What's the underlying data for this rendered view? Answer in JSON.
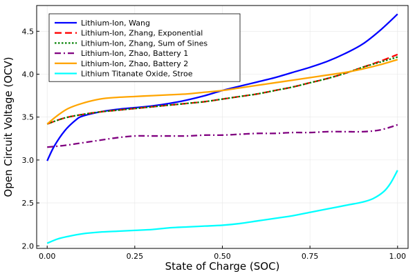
{
  "chart_data": {
    "type": "line",
    "title": "",
    "xlabel": "State of Charge (SOC)",
    "ylabel": "Open Circuit Voltage (OCV)",
    "xlim": [
      -0.03,
      1.03
    ],
    "ylim": [
      1.97,
      4.8
    ],
    "x_ticks": [
      0.0,
      0.25,
      0.5,
      0.75,
      1.0
    ],
    "x_tick_labels": [
      "0.00",
      "0.25",
      "0.50",
      "0.75",
      "1.00"
    ],
    "y_ticks": [
      2.0,
      2.5,
      3.0,
      3.5,
      4.0,
      4.5
    ],
    "y_tick_labels": [
      "2.0",
      "2.5",
      "3.0",
      "3.5",
      "4.0",
      "4.5"
    ],
    "grid": true,
    "legend_position": "top-left",
    "series": [
      {
        "name": "Lithium-Ion, Wang",
        "color": "#0000ff",
        "dash": "solid",
        "points": [
          [
            0.0,
            2.99
          ],
          [
            0.02,
            3.16
          ],
          [
            0.05,
            3.34
          ],
          [
            0.08,
            3.46
          ],
          [
            0.1,
            3.51
          ],
          [
            0.15,
            3.56
          ],
          [
            0.2,
            3.59
          ],
          [
            0.25,
            3.61
          ],
          [
            0.3,
            3.63
          ],
          [
            0.35,
            3.66
          ],
          [
            0.4,
            3.7
          ],
          [
            0.45,
            3.75
          ],
          [
            0.5,
            3.81
          ],
          [
            0.55,
            3.86
          ],
          [
            0.6,
            3.91
          ],
          [
            0.65,
            3.96
          ],
          [
            0.7,
            4.02
          ],
          [
            0.75,
            4.08
          ],
          [
            0.8,
            4.15
          ],
          [
            0.85,
            4.24
          ],
          [
            0.9,
            4.35
          ],
          [
            0.95,
            4.51
          ],
          [
            1.0,
            4.7
          ]
        ]
      },
      {
        "name": "Lithium-Ion, Zhang, Exponential",
        "color": "#ff0000",
        "dash": "dash",
        "points": [
          [
            0.0,
            3.42
          ],
          [
            0.05,
            3.49
          ],
          [
            0.1,
            3.53
          ],
          [
            0.15,
            3.56
          ],
          [
            0.2,
            3.58
          ],
          [
            0.25,
            3.6
          ],
          [
            0.3,
            3.62
          ],
          [
            0.35,
            3.64
          ],
          [
            0.4,
            3.66
          ],
          [
            0.45,
            3.68
          ],
          [
            0.5,
            3.71
          ],
          [
            0.55,
            3.74
          ],
          [
            0.6,
            3.77
          ],
          [
            0.65,
            3.81
          ],
          [
            0.7,
            3.85
          ],
          [
            0.75,
            3.9
          ],
          [
            0.8,
            3.95
          ],
          [
            0.85,
            4.01
          ],
          [
            0.9,
            4.08
          ],
          [
            0.95,
            4.15
          ],
          [
            1.0,
            4.23
          ]
        ]
      },
      {
        "name": "Lithium-Ion, Zhang, Sum of Sines",
        "color": "#008000",
        "dash": "dot",
        "points": [
          [
            0.0,
            3.42
          ],
          [
            0.05,
            3.49
          ],
          [
            0.1,
            3.53
          ],
          [
            0.15,
            3.56
          ],
          [
            0.2,
            3.58
          ],
          [
            0.25,
            3.6
          ],
          [
            0.3,
            3.62
          ],
          [
            0.35,
            3.64
          ],
          [
            0.4,
            3.66
          ],
          [
            0.45,
            3.68
          ],
          [
            0.5,
            3.71
          ],
          [
            0.55,
            3.74
          ],
          [
            0.6,
            3.77
          ],
          [
            0.65,
            3.81
          ],
          [
            0.7,
            3.85
          ],
          [
            0.75,
            3.9
          ],
          [
            0.8,
            3.95
          ],
          [
            0.85,
            4.01
          ],
          [
            0.9,
            4.08
          ],
          [
            0.95,
            4.14
          ],
          [
            1.0,
            4.2
          ]
        ]
      },
      {
        "name": "Lithium-Ion, Zhao, Battery 1",
        "color": "#800080",
        "dash": "dashdot",
        "points": [
          [
            0.0,
            3.15
          ],
          [
            0.05,
            3.17
          ],
          [
            0.1,
            3.2
          ],
          [
            0.15,
            3.23
          ],
          [
            0.2,
            3.26
          ],
          [
            0.25,
            3.28
          ],
          [
            0.3,
            3.28
          ],
          [
            0.35,
            3.28
          ],
          [
            0.4,
            3.28
          ],
          [
            0.45,
            3.29
          ],
          [
            0.5,
            3.29
          ],
          [
            0.55,
            3.3
          ],
          [
            0.6,
            3.31
          ],
          [
            0.65,
            3.31
          ],
          [
            0.7,
            3.32
          ],
          [
            0.75,
            3.32
          ],
          [
            0.8,
            3.33
          ],
          [
            0.85,
            3.33
          ],
          [
            0.9,
            3.33
          ],
          [
            0.95,
            3.35
          ],
          [
            1.0,
            3.41
          ]
        ]
      },
      {
        "name": "Lithium-Ion, Zhao, Battery 2",
        "color": "#ffa500",
        "dash": "solid",
        "points": [
          [
            0.0,
            3.42
          ],
          [
            0.03,
            3.52
          ],
          [
            0.06,
            3.6
          ],
          [
            0.1,
            3.66
          ],
          [
            0.15,
            3.71
          ],
          [
            0.2,
            3.73
          ],
          [
            0.25,
            3.74
          ],
          [
            0.3,
            3.75
          ],
          [
            0.35,
            3.76
          ],
          [
            0.4,
            3.77
          ],
          [
            0.45,
            3.79
          ],
          [
            0.5,
            3.81
          ],
          [
            0.55,
            3.84
          ],
          [
            0.6,
            3.87
          ],
          [
            0.65,
            3.9
          ],
          [
            0.7,
            3.93
          ],
          [
            0.75,
            3.96
          ],
          [
            0.8,
            3.99
          ],
          [
            0.85,
            4.02
          ],
          [
            0.9,
            4.06
          ],
          [
            0.95,
            4.11
          ],
          [
            1.0,
            4.17
          ]
        ]
      },
      {
        "name": "Lithium Titanate Oxide, Stroe",
        "color": "#00ffff",
        "dash": "solid",
        "points": [
          [
            0.0,
            2.03
          ],
          [
            0.03,
            2.08
          ],
          [
            0.06,
            2.11
          ],
          [
            0.1,
            2.14
          ],
          [
            0.15,
            2.16
          ],
          [
            0.2,
            2.17
          ],
          [
            0.25,
            2.18
          ],
          [
            0.3,
            2.19
          ],
          [
            0.35,
            2.21
          ],
          [
            0.4,
            2.22
          ],
          [
            0.45,
            2.23
          ],
          [
            0.5,
            2.24
          ],
          [
            0.55,
            2.26
          ],
          [
            0.6,
            2.29
          ],
          [
            0.65,
            2.32
          ],
          [
            0.7,
            2.35
          ],
          [
            0.75,
            2.39
          ],
          [
            0.8,
            2.43
          ],
          [
            0.85,
            2.47
          ],
          [
            0.9,
            2.51
          ],
          [
            0.93,
            2.55
          ],
          [
            0.96,
            2.63
          ],
          [
            0.98,
            2.73
          ],
          [
            1.0,
            2.88
          ]
        ]
      }
    ]
  }
}
